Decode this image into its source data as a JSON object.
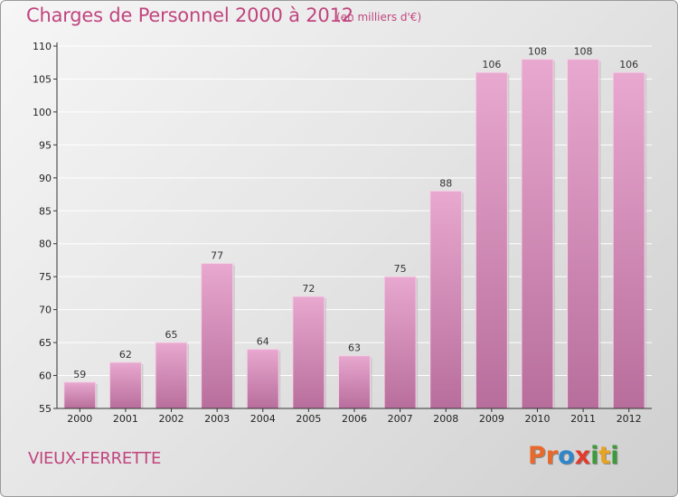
{
  "title": "Charges de Personnel 2000 à 2012",
  "subtitle": "(en milliers d'€)",
  "commune": "VIEUX-FERRETTE",
  "logo": {
    "letters": [
      "P",
      "r",
      "o",
      "x",
      "i",
      "t",
      "i"
    ],
    "colors": [
      "#e8692c",
      "#e8692c",
      "#2f86c9",
      "#e23a2c",
      "#3f9a3c",
      "#e8a321",
      "#3f9a3c"
    ]
  },
  "chart_data": {
    "type": "bar",
    "categories": [
      "2000",
      "2001",
      "2002",
      "2003",
      "2004",
      "2005",
      "2006",
      "2007",
      "2008",
      "2009",
      "2010",
      "2011",
      "2012"
    ],
    "values": [
      59,
      62,
      65,
      77,
      64,
      72,
      63,
      75,
      88,
      106,
      108,
      108,
      106
    ],
    "ylim": [
      55,
      110
    ],
    "yticks": [
      55,
      60,
      65,
      70,
      75,
      80,
      85,
      90,
      95,
      100,
      105,
      110
    ],
    "bar_color": "#d88db8",
    "grid": true
  }
}
